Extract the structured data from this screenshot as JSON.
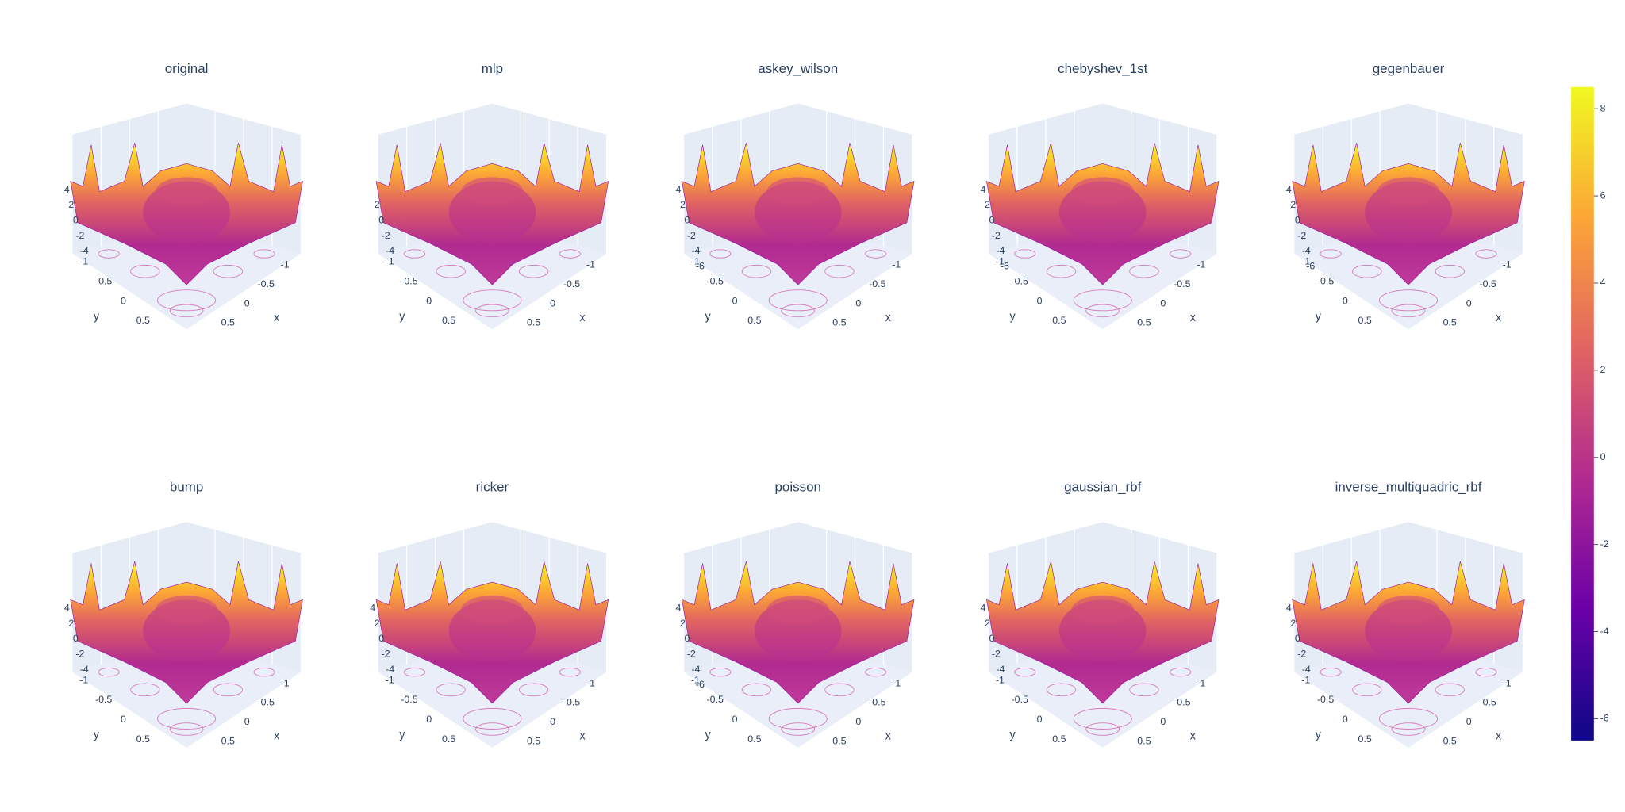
{
  "chart_data": [
    {
      "type": "surface",
      "title": "original",
      "xlabel": "x",
      "ylabel": "y",
      "xticks": [
        -1,
        -0.5,
        0,
        0.5
      ],
      "yticks": [
        -1,
        -0.5,
        0,
        0.5
      ],
      "zticks": [
        -4,
        -2,
        0,
        2,
        4
      ]
    },
    {
      "type": "surface",
      "title": "mlp",
      "xlabel": "x",
      "ylabel": "y",
      "xticks": [
        -1,
        -0.5,
        0,
        0.5
      ],
      "yticks": [
        -1,
        -0.5,
        0,
        0.5
      ],
      "zticks": [
        -4,
        -2,
        0,
        2
      ]
    },
    {
      "type": "surface",
      "title": "askey_wilson",
      "xlabel": "x",
      "ylabel": "y",
      "xticks": [
        -1,
        -0.5,
        0,
        0.5
      ],
      "yticks": [
        -1,
        -0.5,
        0,
        0.5
      ],
      "zticks": [
        -6,
        -4,
        -2,
        0,
        2,
        4
      ]
    },
    {
      "type": "surface",
      "title": "chebyshev_1st",
      "xlabel": "x",
      "ylabel": "y",
      "xticks": [
        -1,
        -0.5,
        0,
        0.5
      ],
      "yticks": [
        -1,
        -0.5,
        0,
        0.5
      ],
      "zticks": [
        -6,
        -4,
        -2,
        0,
        2,
        4
      ]
    },
    {
      "type": "surface",
      "title": "gegenbauer",
      "xlabel": "x",
      "ylabel": "y",
      "xticks": [
        -1,
        -0.5,
        0,
        0.5
      ],
      "yticks": [
        -1,
        -0.5,
        0,
        0.5
      ],
      "zticks": [
        -6,
        -4,
        -2,
        0,
        2,
        4
      ]
    },
    {
      "type": "surface",
      "title": "bump",
      "xlabel": "x",
      "ylabel": "y",
      "xticks": [
        -1,
        -0.5,
        0,
        0.5
      ],
      "yticks": [
        -1,
        -0.5,
        0,
        0.5
      ],
      "zticks": [
        -4,
        -2,
        0,
        2,
        4
      ]
    },
    {
      "type": "surface",
      "title": "ricker",
      "xlabel": "x",
      "ylabel": "y",
      "xticks": [
        -1,
        -0.5,
        0,
        0.5
      ],
      "yticks": [
        -1,
        -0.5,
        0,
        0.5
      ],
      "zticks": [
        -4,
        -2,
        0,
        2,
        4
      ]
    },
    {
      "type": "surface",
      "title": "poisson",
      "xlabel": "x",
      "ylabel": "y",
      "xticks": [
        -1,
        -0.5,
        0,
        0.5
      ],
      "yticks": [
        -1,
        -0.5,
        0,
        0.5
      ],
      "zticks": [
        -6,
        -4,
        -2,
        0,
        2,
        4
      ]
    },
    {
      "type": "surface",
      "title": "gaussian_rbf",
      "xlabel": "x",
      "ylabel": "y",
      "xticks": [
        -1,
        -0.5,
        0,
        0.5
      ],
      "yticks": [
        -1,
        -0.5,
        0,
        0.5
      ],
      "zticks": [
        -4,
        -2,
        0,
        2,
        4
      ]
    },
    {
      "type": "surface",
      "title": "inverse_multiquadric_rbf",
      "xlabel": "x",
      "ylabel": "y",
      "xticks": [
        -1,
        -0.5,
        0,
        0.5
      ],
      "yticks": [
        -1,
        -0.5,
        0,
        0.5
      ],
      "zticks": [
        -4,
        -2,
        0,
        2,
        4
      ]
    }
  ],
  "colorbar": {
    "range": [
      -6.5,
      8.5
    ],
    "ticks": [
      -6,
      -4,
      -2,
      0,
      2,
      4,
      6,
      8
    ],
    "colors": [
      "#0d0887",
      "#6a00a8",
      "#b12a90",
      "#e16462",
      "#fca636",
      "#f0f921"
    ]
  }
}
